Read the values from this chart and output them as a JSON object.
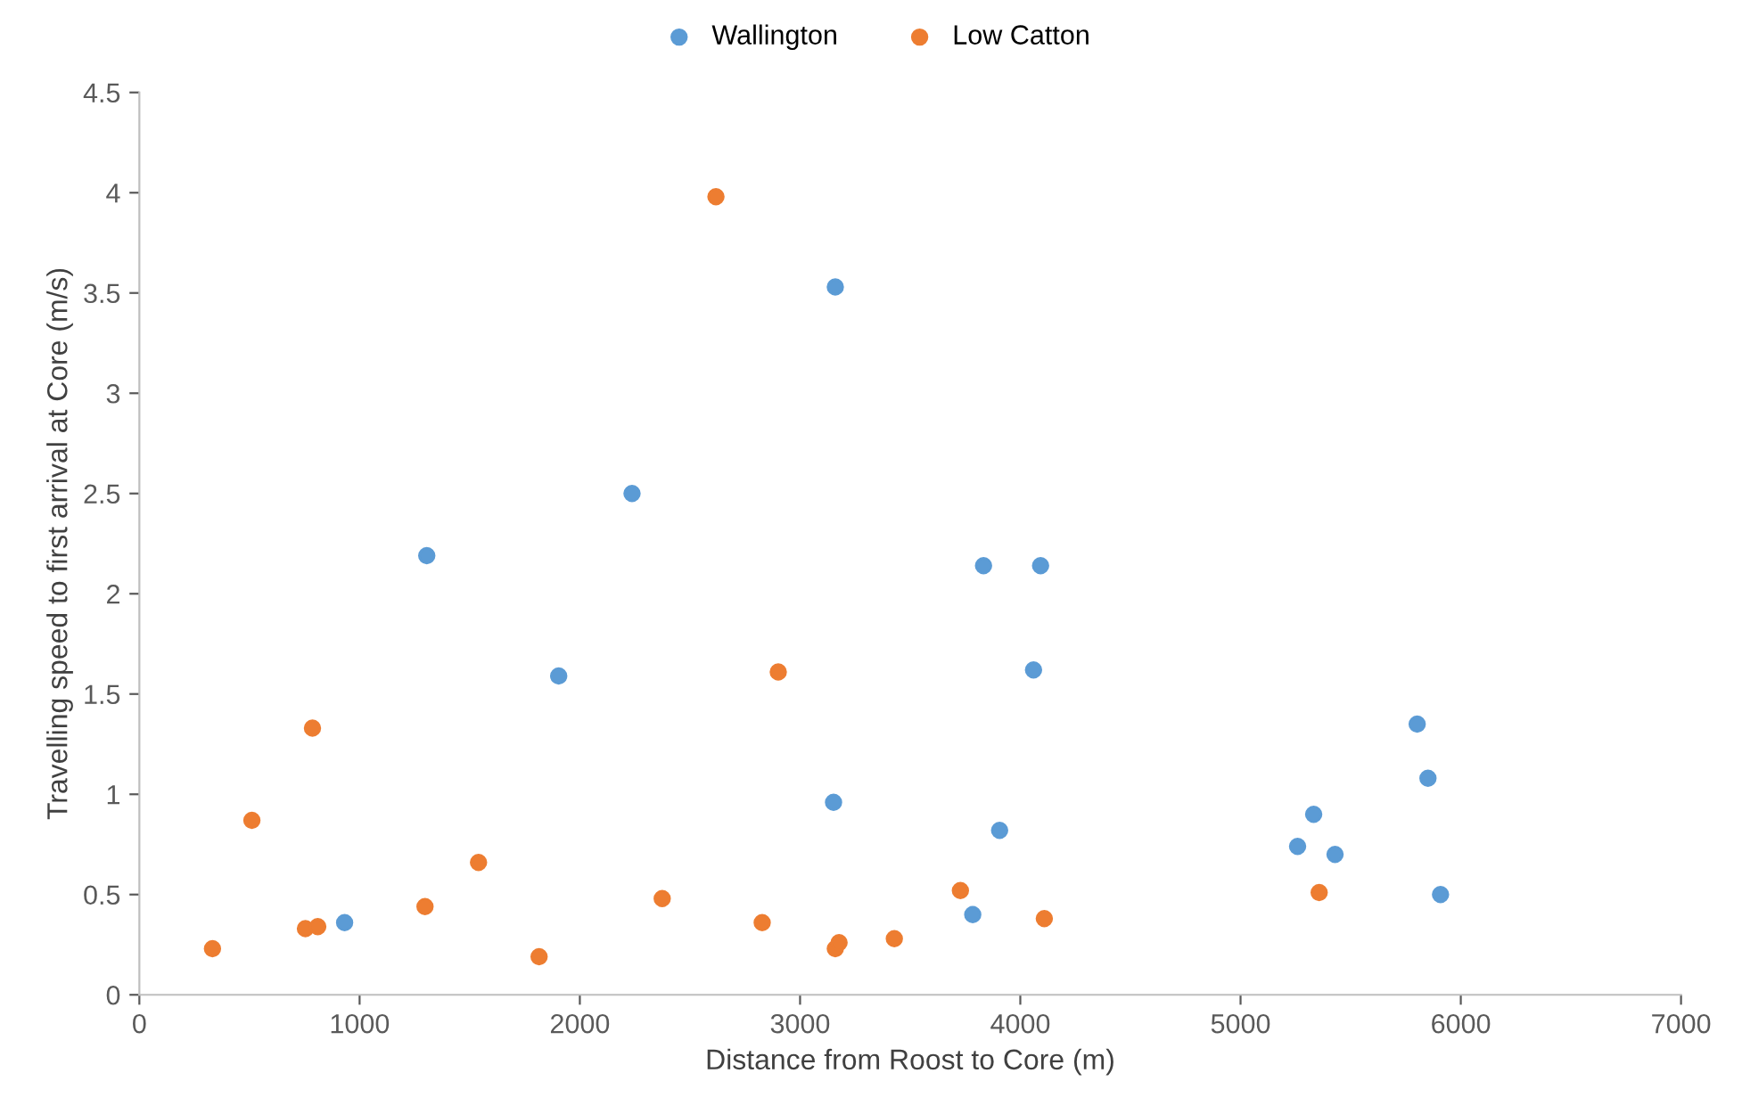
{
  "chart_data": {
    "type": "scatter",
    "xlabel": "Distance from Roost to Core (m)",
    "ylabel": "Travelling speed to first arrival at Core (m/s)",
    "series": [
      {
        "name": "Wallington",
        "color": "#5b9bd5",
        "x": [
          932,
          1305,
          1904,
          2237,
          3160,
          3152,
          3833,
          4092,
          4060,
          3906,
          3784,
          5259,
          5332,
          5429,
          5802,
          5851,
          5908
        ],
        "values": [
          0.36,
          2.19,
          1.59,
          2.5,
          3.53,
          0.96,
          2.14,
          2.14,
          1.62,
          0.82,
          0.4,
          0.74,
          0.9,
          0.7,
          1.35,
          1.08,
          0.5
        ]
      },
      {
        "name": "Low Catton",
        "color": "#ed7d31",
        "x": [
          332,
          511,
          754,
          810,
          786,
          1297,
          1540,
          1815,
          2374,
          2618,
          2828,
          2901,
          3160,
          3177,
          3428,
          3728,
          4109,
          5357
        ],
        "values": [
          0.23,
          0.87,
          0.33,
          0.34,
          1.33,
          0.44,
          0.66,
          0.19,
          0.48,
          3.98,
          0.36,
          1.61,
          0.23,
          0.26,
          0.28,
          0.52,
          0.38,
          0.51
        ]
      }
    ],
    "xlim": [
      0,
      7000
    ],
    "xticks": [
      0,
      1000,
      2000,
      3000,
      4000,
      5000,
      6000,
      7000
    ],
    "ylim": [
      0,
      4.5
    ],
    "yticks": [
      0,
      0.5,
      1,
      1.5,
      2,
      2.5,
      3,
      3.5,
      4,
      4.5
    ],
    "grid": false,
    "legend": "top",
    "marker": "circle"
  }
}
